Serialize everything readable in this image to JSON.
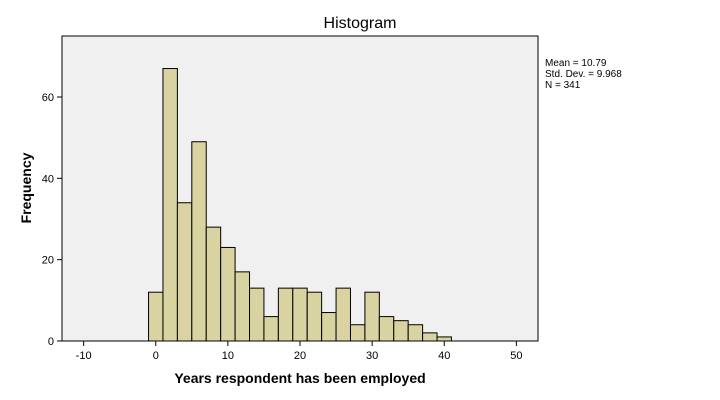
{
  "chart_data": {
    "type": "bar",
    "title": "Histogram",
    "xlabel": "Years respondent has been employed",
    "ylabel": "Frequency",
    "bin_width": 2,
    "bins": [
      {
        "start": -1,
        "end": 1,
        "count": 12
      },
      {
        "start": 1,
        "end": 3,
        "count": 67
      },
      {
        "start": 3,
        "end": 5,
        "count": 34
      },
      {
        "start": 5,
        "end": 7,
        "count": 49
      },
      {
        "start": 7,
        "end": 9,
        "count": 28
      },
      {
        "start": 9,
        "end": 11,
        "count": 23
      },
      {
        "start": 11,
        "end": 13,
        "count": 17
      },
      {
        "start": 13,
        "end": 15,
        "count": 13
      },
      {
        "start": 15,
        "end": 17,
        "count": 6
      },
      {
        "start": 17,
        "end": 19,
        "count": 13
      },
      {
        "start": 19,
        "end": 21,
        "count": 13
      },
      {
        "start": 21,
        "end": 23,
        "count": 12
      },
      {
        "start": 23,
        "end": 25,
        "count": 7
      },
      {
        "start": 25,
        "end": 27,
        "count": 13
      },
      {
        "start": 27,
        "end": 29,
        "count": 4
      },
      {
        "start": 29,
        "end": 31,
        "count": 12
      },
      {
        "start": 31,
        "end": 33,
        "count": 6
      },
      {
        "start": 33,
        "end": 35,
        "count": 5
      },
      {
        "start": 35,
        "end": 37,
        "count": 4
      },
      {
        "start": 37,
        "end": 39,
        "count": 2
      },
      {
        "start": 39,
        "end": 41,
        "count": 1
      }
    ],
    "xlim": [
      -13,
      53
    ],
    "ylim": [
      0,
      75
    ],
    "xticks": [
      -10,
      0,
      10,
      20,
      30,
      40,
      50
    ],
    "yticks": [
      0,
      20,
      40,
      60
    ],
    "grid": false,
    "legend": "none",
    "stats": {
      "mean": "Mean = 10.79",
      "std_dev": "Std. Dev. = 9.968",
      "n": "N = 341"
    },
    "colors": {
      "bar_fill": "#d8d3a0",
      "bar_stroke": "#000000",
      "plot_background": "#f0f0f0",
      "page_background": "#ffffff"
    }
  }
}
